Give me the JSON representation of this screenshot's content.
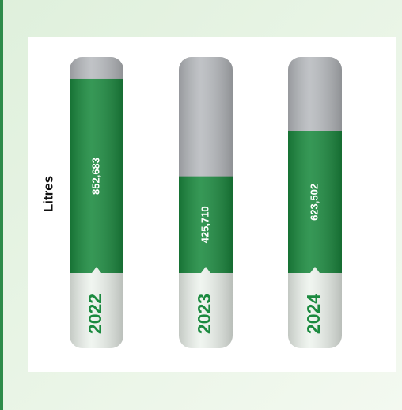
{
  "chart_data": {
    "type": "bar",
    "y_label": "Litres",
    "categories": [
      "2022",
      "2023",
      "2024"
    ],
    "values": [
      852683,
      425710,
      623502
    ],
    "value_labels": [
      "852,683",
      "425,710",
      "623,502"
    ],
    "color": "#1b8a3f",
    "ylim": [
      0,
      950000
    ]
  }
}
